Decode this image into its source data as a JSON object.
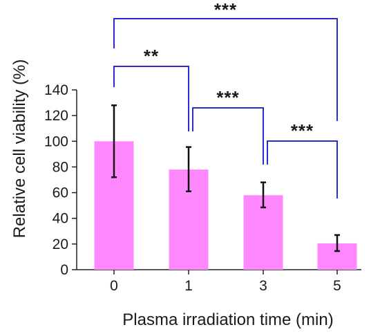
{
  "chart_data": {
    "type": "bar",
    "title": "",
    "xlabel": "Plasma irradiation time (min)",
    "ylabel": "Relative cell viability (%)",
    "categories": [
      "0",
      "1",
      "3",
      "5"
    ],
    "values": [
      100,
      78,
      58,
      20.5
    ],
    "error_low": [
      72,
      61,
      48.5,
      14.5
    ],
    "error_high": [
      128,
      95.5,
      68,
      27
    ],
    "ylim": [
      0,
      140
    ],
    "yticks": [
      "0",
      "20",
      "40",
      "60",
      "80",
      "100",
      "120",
      "140"
    ],
    "grid": false,
    "legend": "none",
    "bar_color": "#ff88ff",
    "significance": [
      {
        "from": 0,
        "to": 1,
        "label": "**"
      },
      {
        "from": 1,
        "to": 2,
        "label": "***"
      },
      {
        "from": 2,
        "to": 3,
        "label": "***"
      },
      {
        "from": 0,
        "to": 3,
        "label": "***"
      }
    ],
    "bracket_color": "#2b2bd1"
  }
}
